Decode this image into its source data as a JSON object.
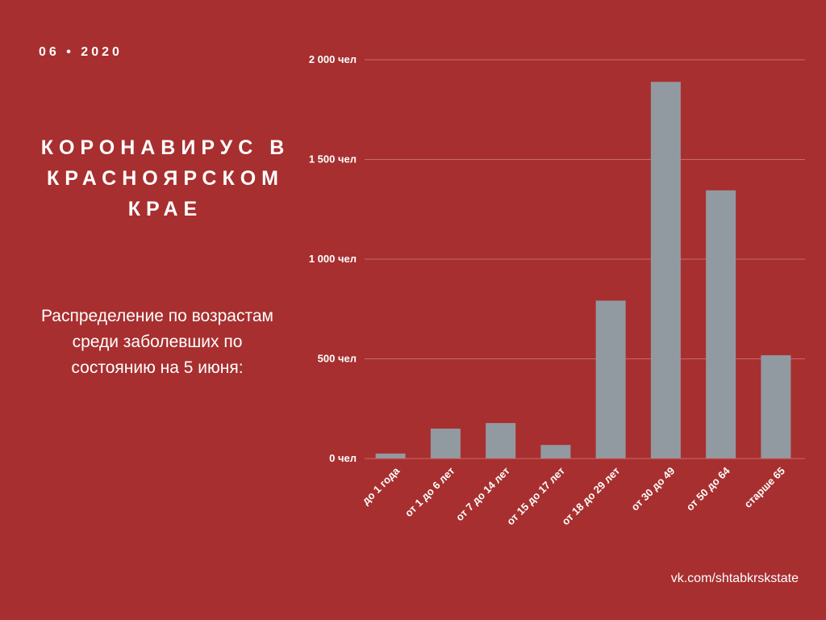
{
  "header": {
    "date": "06 • 2020",
    "title_lines": [
      "КОРОНАВИРУС В",
      "КРАСНОЯРСКОМ",
      "КРАЕ"
    ],
    "subtitle_lines": [
      "Распределение по возрастам",
      "среди заболевших по",
      "состоянию на 5 июня:"
    ]
  },
  "footer": {
    "source": "vk.com/shtabkrskstate"
  },
  "colors": {
    "background": "#a82f2f",
    "bar": "#929aa1",
    "grid": "#c96a6a",
    "text": "#ffffff"
  },
  "chart_data": {
    "type": "bar",
    "categories": [
      "до 1 года",
      "от 1 до 6 лет",
      "от 7 до 14 лет",
      "от 15 до 17 лет",
      "от 18 до 29 лет",
      "от 30 до 49",
      "от 50 до 64",
      "старше 65"
    ],
    "values": [
      25,
      150,
      178,
      68,
      792,
      1889,
      1345,
      518
    ],
    "ylim": [
      0,
      2000
    ],
    "yticks": [
      0,
      500,
      1000,
      1500,
      2000
    ],
    "ytick_labels": [
      "0 чел",
      "500 чел",
      "1 000 чел",
      "1 500 чел",
      "2 000 чел"
    ],
    "title": "",
    "xlabel": "",
    "ylabel": "",
    "grid": true
  }
}
